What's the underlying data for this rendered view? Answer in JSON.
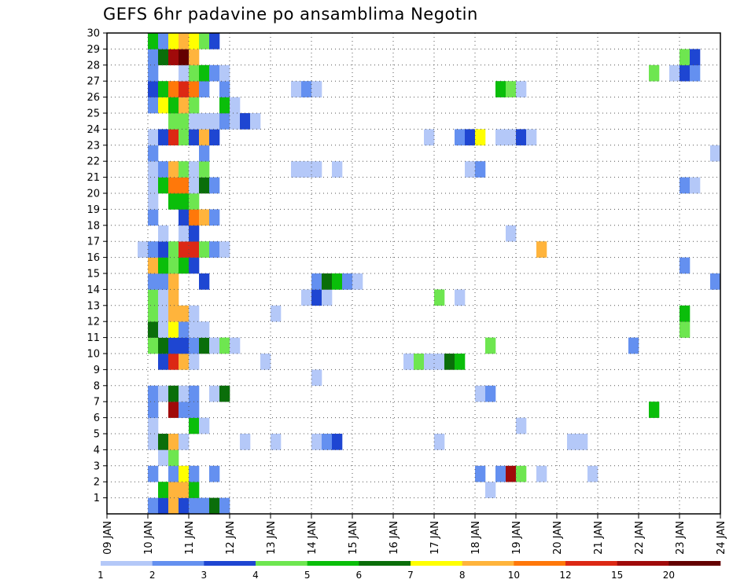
{
  "title": "GEFS 6hr padavine po ansamblima Negotin",
  "chart_data": {
    "type": "heatmap",
    "title": "GEFS 6hr padavine po ansamblima Negotin",
    "x_tick_labels": [
      "09 JAN",
      "10 JAN",
      "11 JAN",
      "12 JAN",
      "13 JAN",
      "14 JAN",
      "15 JAN",
      "16 JAN",
      "17 JAN",
      "18 JAN",
      "19 JAN",
      "20 JAN",
      "21 JAN",
      "22 JAN",
      "23 JAN",
      "24 JAN"
    ],
    "y_tick_labels": [
      "1",
      "2",
      "3",
      "4",
      "5",
      "6",
      "7",
      "8",
      "9",
      "10",
      "11",
      "12",
      "13",
      "14",
      "15",
      "16",
      "17",
      "18",
      "19",
      "20",
      "21",
      "22",
      "23",
      "24",
      "25",
      "26",
      "27",
      "28",
      "29",
      "30"
    ],
    "xlim_steps": [
      0,
      60
    ],
    "ylim": [
      0,
      30
    ],
    "grid": true,
    "colorbar": {
      "labels": [
        "1",
        "2",
        "3",
        "4",
        "5",
        "6",
        "7",
        "8",
        "10",
        "12",
        "15",
        "20"
      ],
      "colors": [
        "#b4c8f8",
        "#6490f0",
        "#1e46d2",
        "#6ee650",
        "#0abe0a",
        "#0a6e0a",
        "#ffff00",
        "#ffb43c",
        "#ff780a",
        "#dc2814",
        "#a00a0a",
        "#640000"
      ]
    },
    "cell_levels": [
      {
        "member": 1,
        "cells": [
          [
            4,
            1
          ],
          [
            5,
            2
          ],
          [
            6,
            7
          ],
          [
            7,
            2
          ],
          [
            8,
            1
          ],
          [
            9,
            1
          ],
          [
            10,
            5
          ],
          [
            11,
            1
          ]
        ]
      },
      {
        "member": 2,
        "cells": [
          [
            5,
            4
          ],
          [
            6,
            7
          ],
          [
            7,
            7
          ],
          [
            8,
            4
          ],
          [
            37,
            0
          ]
        ]
      },
      {
        "member": 3,
        "cells": [
          [
            4,
            1
          ],
          [
            6,
            1
          ],
          [
            7,
            6
          ],
          [
            8,
            1
          ],
          [
            10,
            1
          ],
          [
            36,
            1
          ],
          [
            38,
            1
          ],
          [
            39,
            10
          ],
          [
            40,
            3
          ],
          [
            42,
            0
          ],
          [
            47,
            0
          ]
        ]
      },
      {
        "member": 4,
        "cells": [
          [
            5,
            0
          ],
          [
            6,
            3
          ]
        ]
      },
      {
        "member": 5,
        "cells": [
          [
            4,
            0
          ],
          [
            5,
            5
          ],
          [
            6,
            7
          ],
          [
            7,
            0
          ],
          [
            13,
            0
          ],
          [
            16,
            0
          ],
          [
            20,
            0
          ],
          [
            21,
            1
          ],
          [
            22,
            2
          ],
          [
            32,
            0
          ],
          [
            45,
            0
          ],
          [
            46,
            0
          ]
        ]
      },
      {
        "member": 6,
        "cells": [
          [
            4,
            0
          ],
          [
            8,
            4
          ],
          [
            9,
            0
          ],
          [
            40,
            0
          ]
        ]
      },
      {
        "member": 7,
        "cells": [
          [
            4,
            1
          ],
          [
            6,
            10
          ],
          [
            7,
            1
          ],
          [
            8,
            1
          ],
          [
            53,
            4
          ]
        ]
      },
      {
        "member": 8,
        "cells": [
          [
            4,
            1
          ],
          [
            5,
            0
          ],
          [
            6,
            5
          ],
          [
            7,
            0
          ],
          [
            8,
            1
          ],
          [
            10,
            0
          ],
          [
            11,
            5
          ],
          [
            36,
            0
          ],
          [
            37,
            1
          ]
        ]
      },
      {
        "member": 9,
        "cells": [
          [
            20,
            0
          ]
        ]
      },
      {
        "member": 10,
        "cells": [
          [
            5,
            2
          ],
          [
            6,
            9
          ],
          [
            7,
            7
          ],
          [
            8,
            0
          ],
          [
            15,
            0
          ],
          [
            29,
            0
          ],
          [
            30,
            3
          ],
          [
            31,
            0
          ],
          [
            32,
            0
          ],
          [
            33,
            5
          ],
          [
            34,
            4
          ]
        ]
      },
      {
        "member": 11,
        "cells": [
          [
            4,
            3
          ],
          [
            5,
            5
          ],
          [
            6,
            2
          ],
          [
            7,
            2
          ],
          [
            8,
            1
          ],
          [
            9,
            5
          ],
          [
            10,
            0
          ],
          [
            11,
            3
          ],
          [
            12,
            0
          ],
          [
            37,
            3
          ],
          [
            51,
            1
          ]
        ]
      },
      {
        "member": 12,
        "cells": [
          [
            4,
            5
          ],
          [
            5,
            0
          ],
          [
            6,
            6
          ],
          [
            7,
            1
          ],
          [
            8,
            0
          ],
          [
            9,
            0
          ],
          [
            56,
            3
          ]
        ]
      },
      {
        "member": 13,
        "cells": [
          [
            4,
            3
          ],
          [
            5,
            0
          ],
          [
            6,
            7
          ],
          [
            7,
            7
          ],
          [
            8,
            0
          ],
          [
            16,
            0
          ],
          [
            56,
            4
          ]
        ]
      },
      {
        "member": 14,
        "cells": [
          [
            4,
            3
          ],
          [
            5,
            0
          ],
          [
            6,
            7
          ],
          [
            19,
            0
          ],
          [
            20,
            2
          ],
          [
            21,
            0
          ],
          [
            32,
            3
          ],
          [
            34,
            0
          ]
        ]
      },
      {
        "member": 15,
        "cells": [
          [
            4,
            1
          ],
          [
            5,
            1
          ],
          [
            6,
            7
          ],
          [
            9,
            2
          ],
          [
            20,
            1
          ],
          [
            21,
            5
          ],
          [
            22,
            4
          ],
          [
            23,
            1
          ],
          [
            24,
            0
          ],
          [
            59,
            1
          ]
        ]
      },
      {
        "member": 16,
        "cells": [
          [
            4,
            7
          ],
          [
            5,
            4
          ],
          [
            6,
            3
          ],
          [
            7,
            4
          ],
          [
            8,
            2
          ],
          [
            56,
            1
          ]
        ]
      },
      {
        "member": 17,
        "cells": [
          [
            3,
            0
          ],
          [
            4,
            1
          ],
          [
            5,
            2
          ],
          [
            6,
            3
          ],
          [
            7,
            9
          ],
          [
            8,
            9
          ],
          [
            9,
            3
          ],
          [
            10,
            1
          ],
          [
            11,
            0
          ],
          [
            42,
            7
          ]
        ]
      },
      {
        "member": 18,
        "cells": [
          [
            5,
            0
          ],
          [
            7,
            0
          ],
          [
            8,
            2
          ],
          [
            39,
            0
          ]
        ]
      },
      {
        "member": 19,
        "cells": [
          [
            4,
            1
          ],
          [
            7,
            2
          ],
          [
            8,
            8
          ],
          [
            9,
            7
          ],
          [
            10,
            1
          ]
        ]
      },
      {
        "member": 20,
        "cells": [
          [
            4,
            0
          ],
          [
            6,
            4
          ],
          [
            7,
            4
          ],
          [
            8,
            3
          ]
        ]
      },
      {
        "member": 21,
        "cells": [
          [
            4,
            0
          ],
          [
            5,
            4
          ],
          [
            6,
            8
          ],
          [
            7,
            8
          ],
          [
            8,
            0
          ],
          [
            9,
            5
          ],
          [
            10,
            1
          ],
          [
            56,
            1
          ],
          [
            57,
            0
          ]
        ]
      },
      {
        "member": 22,
        "cells": [
          [
            4,
            0
          ],
          [
            5,
            1
          ],
          [
            6,
            7
          ],
          [
            7,
            3
          ],
          [
            8,
            0
          ],
          [
            9,
            3
          ],
          [
            18,
            0
          ],
          [
            19,
            0
          ],
          [
            20,
            0
          ],
          [
            22,
            0
          ],
          [
            35,
            0
          ],
          [
            36,
            1
          ]
        ]
      },
      {
        "member": 23,
        "cells": [
          [
            4,
            1
          ],
          [
            9,
            1
          ],
          [
            59,
            0
          ]
        ]
      },
      {
        "member": 24,
        "cells": [
          [
            4,
            0
          ],
          [
            5,
            2
          ],
          [
            6,
            9
          ],
          [
            7,
            3
          ],
          [
            8,
            2
          ],
          [
            9,
            7
          ],
          [
            10,
            2
          ],
          [
            31,
            0
          ],
          [
            34,
            1
          ],
          [
            35,
            2
          ],
          [
            36,
            6
          ],
          [
            38,
            0
          ],
          [
            39,
            0
          ],
          [
            40,
            2
          ],
          [
            41,
            0
          ]
        ]
      },
      {
        "member": 25,
        "cells": [
          [
            6,
            3
          ],
          [
            7,
            3
          ],
          [
            8,
            0
          ],
          [
            9,
            0
          ],
          [
            10,
            0
          ],
          [
            11,
            1
          ],
          [
            12,
            0
          ],
          [
            13,
            2
          ],
          [
            14,
            0
          ]
        ]
      },
      {
        "member": 26,
        "cells": [
          [
            4,
            1
          ],
          [
            5,
            6
          ],
          [
            6,
            4
          ],
          [
            7,
            7
          ],
          [
            8,
            3
          ],
          [
            11,
            4
          ],
          [
            12,
            0
          ]
        ]
      },
      {
        "member": 27,
        "cells": [
          [
            4,
            2
          ],
          [
            5,
            4
          ],
          [
            6,
            8
          ],
          [
            7,
            9
          ],
          [
            8,
            8
          ],
          [
            9,
            1
          ],
          [
            11,
            1
          ],
          [
            18,
            0
          ],
          [
            19,
            1
          ],
          [
            20,
            0
          ],
          [
            38,
            4
          ],
          [
            39,
            3
          ],
          [
            40,
            0
          ]
        ]
      },
      {
        "member": 28,
        "cells": [
          [
            4,
            1
          ],
          [
            7,
            0
          ],
          [
            8,
            3
          ],
          [
            9,
            4
          ],
          [
            10,
            1
          ],
          [
            11,
            0
          ],
          [
            53,
            3
          ],
          [
            55,
            0
          ],
          [
            56,
            2
          ],
          [
            57,
            1
          ]
        ]
      },
      {
        "member": 29,
        "cells": [
          [
            4,
            1
          ],
          [
            5,
            5
          ],
          [
            6,
            10
          ],
          [
            7,
            11
          ],
          [
            8,
            7
          ],
          [
            56,
            3
          ],
          [
            57,
            2
          ]
        ]
      },
      {
        "member": 30,
        "cells": [
          [
            4,
            4
          ],
          [
            5,
            1
          ],
          [
            6,
            6
          ],
          [
            7,
            7
          ],
          [
            8,
            6
          ],
          [
            9,
            3
          ],
          [
            10,
            2
          ]
        ]
      }
    ]
  }
}
